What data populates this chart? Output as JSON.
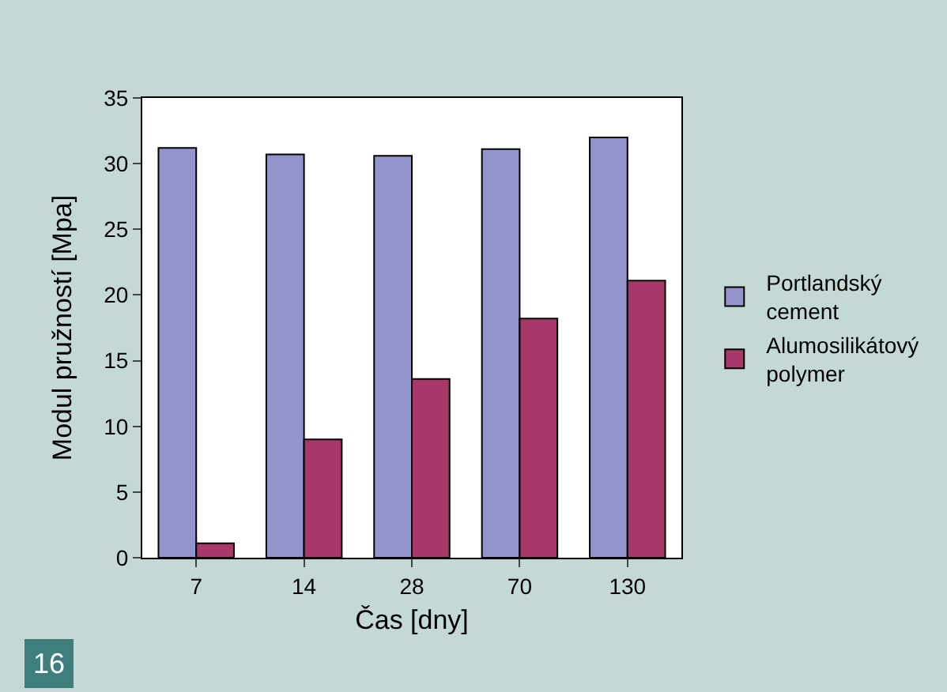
{
  "chart_data": {
    "type": "bar",
    "xlabel": "Čas [dny]",
    "ylabel": "Modul pružností [Mpa]",
    "categories": [
      "7",
      "14",
      "28",
      "70",
      "130"
    ],
    "series": [
      {
        "name": "Portlandský cement",
        "color": "#9494cc",
        "values": [
          31.2,
          30.7,
          30.6,
          31.1,
          32.0
        ]
      },
      {
        "name": "Alumosilikátový polymer",
        "color": "#a8386a",
        "values": [
          1.1,
          9.0,
          13.6,
          18.2,
          21.1
        ]
      }
    ],
    "ylim": [
      0,
      35
    ],
    "yticks": [
      0,
      5,
      10,
      15,
      20,
      25,
      30,
      35
    ],
    "legend": "right",
    "annotations": [
      "16"
    ]
  }
}
